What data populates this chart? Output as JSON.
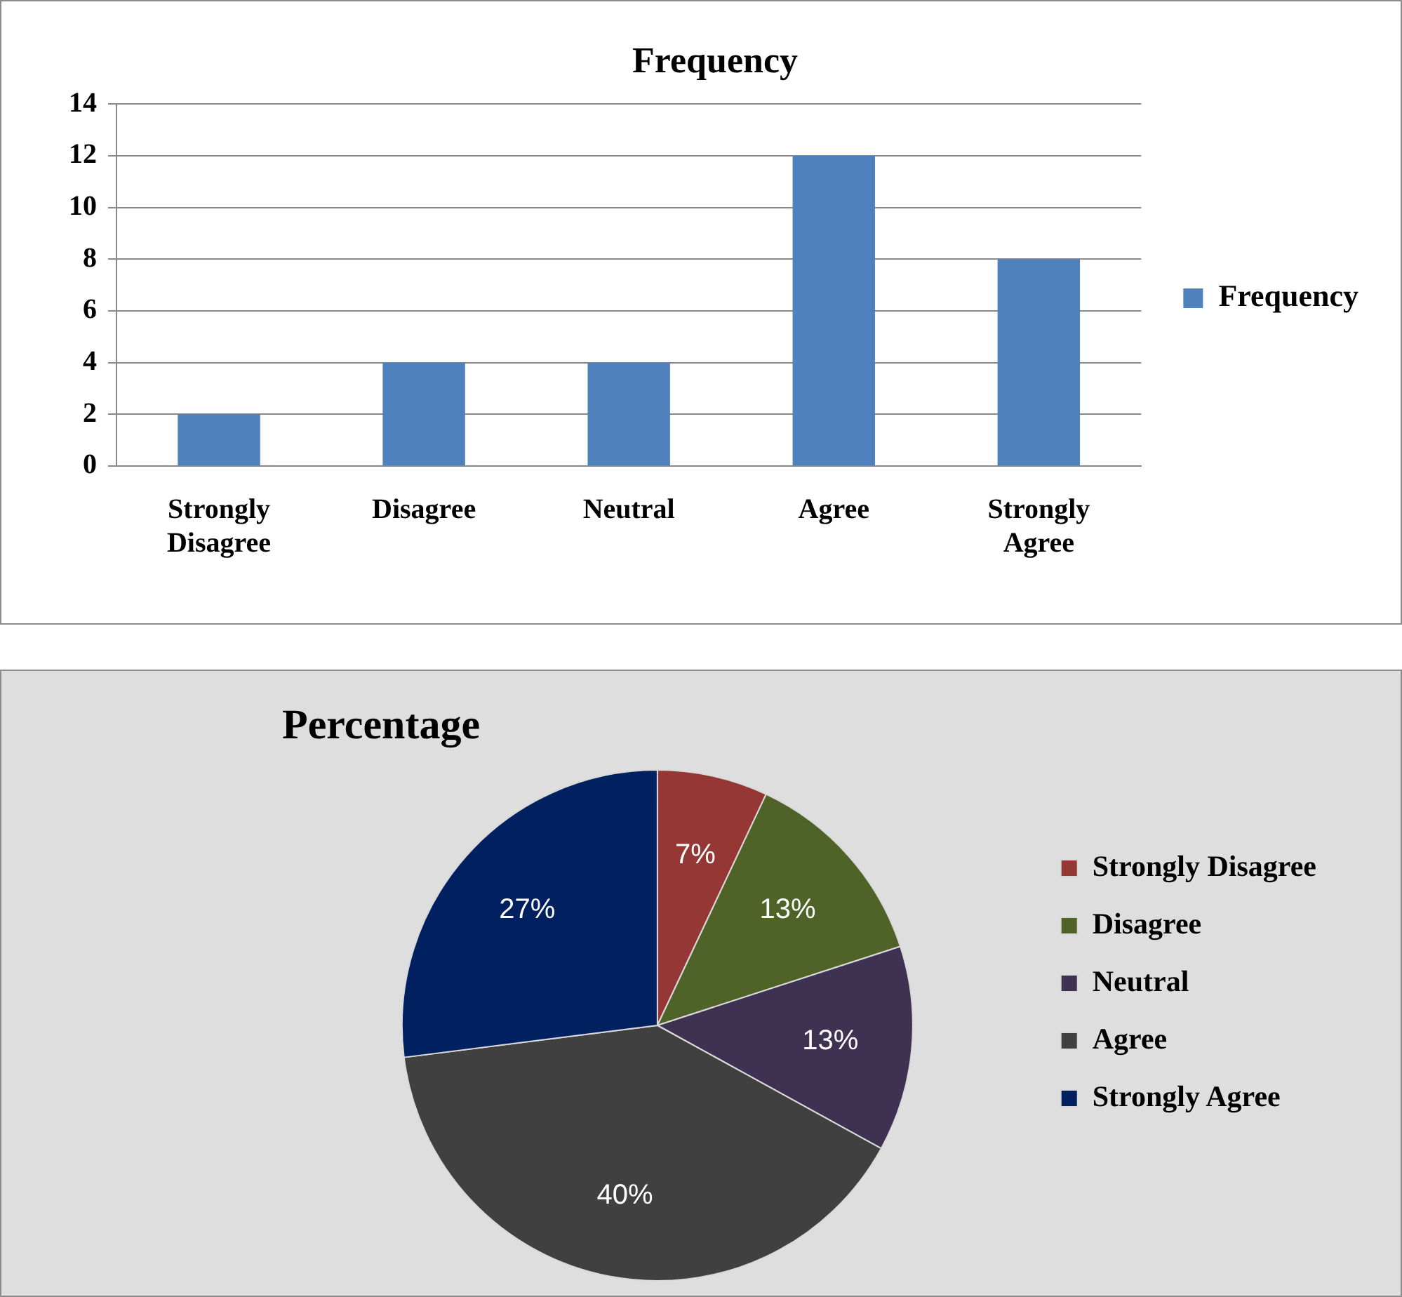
{
  "chart_data": [
    {
      "type": "bar",
      "title": "Frequency",
      "categories": [
        "Strongly\nDisagree",
        "Disagree",
        "Neutral",
        "Agree",
        "Strongly\nAgree"
      ],
      "series": [
        {
          "name": "Frequency",
          "color": "#4f81bd",
          "values": [
            2,
            4,
            4,
            12,
            8
          ]
        }
      ],
      "ylim": [
        0,
        14
      ],
      "yticks": [
        0,
        2,
        4,
        6,
        8,
        10,
        12,
        14
      ],
      "grid": "y",
      "legend": "right"
    },
    {
      "type": "pie",
      "title": "Percentage",
      "categories": [
        "Strongly Disagree",
        "Disagree",
        "Neutral",
        "Agree",
        "Strongly Agree"
      ],
      "values": [
        7,
        13,
        13,
        40,
        27
      ],
      "colors": [
        "#953735",
        "#4f6228",
        "#3f3151",
        "#404040",
        "#002060"
      ],
      "value_labels": [
        "7%",
        "13%",
        "13%",
        "40%",
        "27%"
      ],
      "legend": "right"
    }
  ]
}
